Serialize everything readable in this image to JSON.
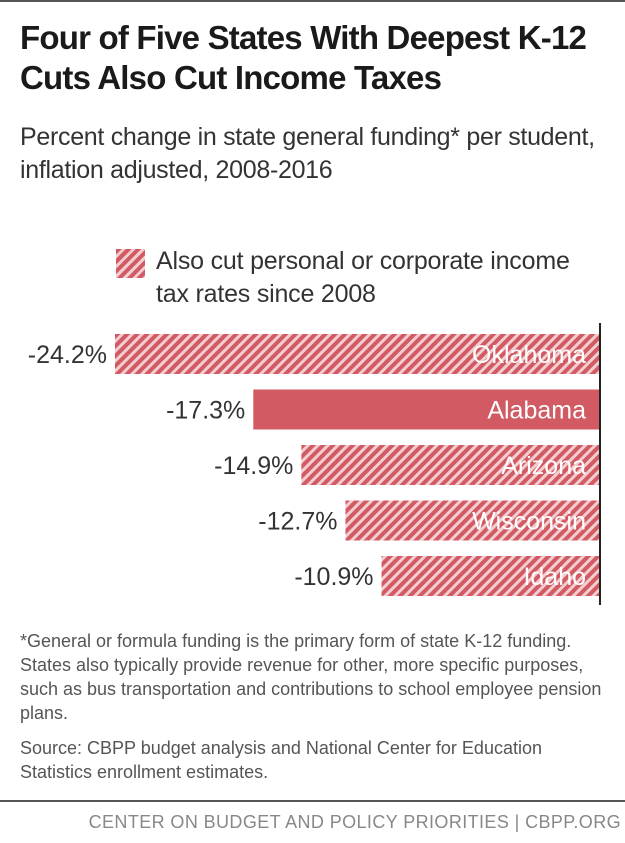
{
  "title": "Four of Five States With Deepest K-12 Cuts Also Cut Income Taxes",
  "subtitle": "Percent change in state general funding* per student, inflation adjusted, 2008-2016",
  "legend": {
    "label": "Also cut personal or corporate income tax rates since 2008"
  },
  "chart_data": {
    "type": "bar",
    "orientation": "horizontal",
    "categories": [
      "Oklahoma",
      "Alabama",
      "Arizona",
      "Wisconsin",
      "Idaho"
    ],
    "values": [
      -24.2,
      -17.3,
      -14.9,
      -12.7,
      -10.9
    ],
    "value_labels": [
      "-24.2%",
      "-17.3%",
      "-14.9%",
      "-12.7%",
      "-10.9%"
    ],
    "also_cut_income_tax": [
      true,
      false,
      true,
      true,
      true
    ],
    "xlim": [
      -24.2,
      0
    ],
    "grid": false,
    "legend_position": "top",
    "colors": {
      "bar": "#d15a63",
      "hatch": "#f3cdd0",
      "axis": "#222222"
    }
  },
  "footnote": "*General or formula funding is the primary form of state K-12 funding.  States also typically provide revenue for other, more specific purposes, such as bus transportation and contributions to school employee pension plans.",
  "source": "Source: CBPP budget analysis and National Center for Education Statistics enrollment estimates.",
  "brand": "CENTER ON BUDGET AND POLICY PRIORITIES | CBPP.ORG"
}
